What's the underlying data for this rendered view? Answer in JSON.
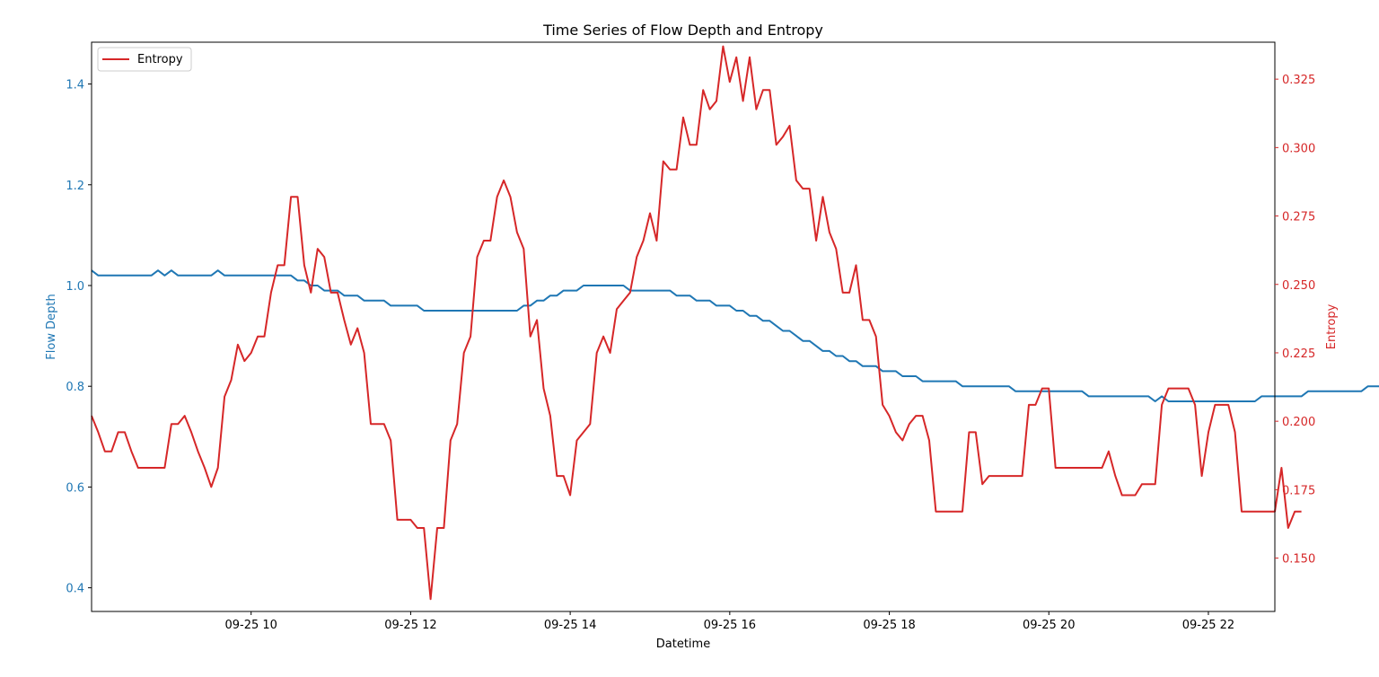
{
  "chart_data": {
    "type": "line",
    "title": "Time Series of Flow Depth and Entropy",
    "xlabel": "Datetime",
    "ylabel_left": "Flow Depth",
    "ylabel_right": "Entropy",
    "xlim": [
      "2025-09-25 08:00",
      "2025-09-25 22:50"
    ],
    "ylim_left": [
      0.353,
      1.483
    ],
    "ylim_right": [
      0.1305,
      0.3385
    ],
    "x_ticks": [
      {
        "t": "2025-09-25 10:00",
        "label": "09-25 10"
      },
      {
        "t": "2025-09-25 12:00",
        "label": "09-25 12"
      },
      {
        "t": "2025-09-25 14:00",
        "label": "09-25 14"
      },
      {
        "t": "2025-09-25 16:00",
        "label": "09-25 16"
      },
      {
        "t": "2025-09-25 18:00",
        "label": "09-25 18"
      },
      {
        "t": "2025-09-25 20:00",
        "label": "09-25 20"
      },
      {
        "t": "2025-09-25 22:00",
        "label": "09-25 22"
      }
    ],
    "y_ticks_left": [
      "0.4",
      "0.6",
      "0.8",
      "1.0",
      "1.2",
      "1.4"
    ],
    "y_ticks_right": [
      "0.150",
      "0.175",
      "0.200",
      "0.225",
      "0.250",
      "0.275",
      "0.300",
      "0.325"
    ],
    "legend": {
      "placement": "upper-left",
      "entries": [
        "Entropy"
      ]
    },
    "grid": false,
    "start_time": "2025-09-25 08:00",
    "step_minutes": 5,
    "series": [
      {
        "name": "",
        "axis": "left",
        "color": "#1f77b4",
        "values": [
          1.03,
          1.02,
          1.02,
          1.02,
          1.02,
          1.02,
          1.02,
          1.02,
          1.02,
          1.02,
          1.03,
          1.02,
          1.03,
          1.02,
          1.02,
          1.02,
          1.02,
          1.02,
          1.02,
          1.03,
          1.02,
          1.02,
          1.02,
          1.02,
          1.02,
          1.02,
          1.02,
          1.02,
          1.02,
          1.02,
          1.02,
          1.01,
          1.01,
          1.0,
          1.0,
          0.99,
          0.99,
          0.99,
          0.98,
          0.98,
          0.98,
          0.97,
          0.97,
          0.97,
          0.97,
          0.96,
          0.96,
          0.96,
          0.96,
          0.96,
          0.95,
          0.95,
          0.95,
          0.95,
          0.95,
          0.95,
          0.95,
          0.95,
          0.95,
          0.95,
          0.95,
          0.95,
          0.95,
          0.95,
          0.95,
          0.96,
          0.96,
          0.97,
          0.97,
          0.98,
          0.98,
          0.99,
          0.99,
          0.99,
          1.0,
          1.0,
          1.0,
          1.0,
          1.0,
          1.0,
          1.0,
          0.99,
          0.99,
          0.99,
          0.99,
          0.99,
          0.99,
          0.99,
          0.98,
          0.98,
          0.98,
          0.97,
          0.97,
          0.97,
          0.96,
          0.96,
          0.96,
          0.95,
          0.95,
          0.94,
          0.94,
          0.93,
          0.93,
          0.92,
          0.91,
          0.91,
          0.9,
          0.89,
          0.89,
          0.88,
          0.87,
          0.87,
          0.86,
          0.86,
          0.85,
          0.85,
          0.84,
          0.84,
          0.84,
          0.83,
          0.83,
          0.83,
          0.82,
          0.82,
          0.82,
          0.81,
          0.81,
          0.81,
          0.81,
          0.81,
          0.81,
          0.8,
          0.8,
          0.8,
          0.8,
          0.8,
          0.8,
          0.8,
          0.8,
          0.79,
          0.79,
          0.79,
          0.79,
          0.79,
          0.79,
          0.79,
          0.79,
          0.79,
          0.79,
          0.79,
          0.78,
          0.78,
          0.78,
          0.78,
          0.78,
          0.78,
          0.78,
          0.78,
          0.78,
          0.78,
          0.77,
          0.78,
          0.77,
          0.77,
          0.77,
          0.77,
          0.77,
          0.77,
          0.77,
          0.77,
          0.77,
          0.77,
          0.77,
          0.77,
          0.77,
          0.77,
          0.78,
          0.78,
          0.78,
          0.78,
          0.78,
          0.78,
          0.78,
          0.79,
          0.79,
          0.79,
          0.79,
          0.79,
          0.79,
          0.79,
          0.79,
          0.79,
          0.8,
          0.8,
          0.8,
          0.8,
          0.8,
          0.8,
          0.8,
          0.8,
          0.8,
          0.8,
          0.8
        ]
      },
      {
        "name": "Entropy",
        "axis": "right",
        "color": "#d62728",
        "values": [
          0.202,
          0.196,
          0.189,
          0.189,
          0.196,
          0.196,
          0.189,
          0.183,
          0.183,
          0.183,
          0.183,
          0.183,
          0.199,
          0.199,
          0.202,
          0.196,
          0.189,
          0.183,
          0.176,
          0.183,
          0.209,
          0.215,
          0.228,
          0.222,
          0.225,
          0.231,
          0.231,
          0.247,
          0.257,
          0.257,
          0.282,
          0.282,
          0.257,
          0.247,
          0.263,
          0.26,
          0.247,
          0.247,
          0.237,
          0.228,
          0.234,
          0.225,
          0.199,
          0.199,
          0.199,
          0.193,
          0.164,
          0.164,
          0.164,
          0.161,
          0.161,
          0.135,
          0.161,
          0.161,
          0.193,
          0.199,
          0.225,
          0.231,
          0.26,
          0.266,
          0.266,
          0.282,
          0.288,
          0.282,
          0.269,
          0.263,
          0.231,
          0.237,
          0.212,
          0.202,
          0.18,
          0.18,
          0.173,
          0.193,
          0.196,
          0.199,
          0.225,
          0.231,
          0.225,
          0.241,
          0.244,
          0.247,
          0.26,
          0.266,
          0.276,
          0.266,
          0.295,
          0.292,
          0.292,
          0.311,
          0.301,
          0.301,
          0.321,
          0.314,
          0.317,
          0.337,
          0.324,
          0.333,
          0.317,
          0.333,
          0.314,
          0.321,
          0.321,
          0.301,
          0.304,
          0.308,
          0.288,
          0.285,
          0.285,
          0.266,
          0.282,
          0.269,
          0.263,
          0.247,
          0.247,
          0.257,
          0.237,
          0.237,
          0.231,
          0.206,
          0.202,
          0.196,
          0.193,
          0.199,
          0.202,
          0.202,
          0.193,
          0.167,
          0.167,
          0.167,
          0.167,
          0.167,
          0.196,
          0.196,
          0.177,
          0.18,
          0.18,
          0.18,
          0.18,
          0.18,
          0.18,
          0.206,
          0.206,
          0.212,
          0.212,
          0.183,
          0.183,
          0.183,
          0.183,
          0.183,
          0.183,
          0.183,
          0.183,
          0.189,
          0.18,
          0.173,
          0.173,
          0.173,
          0.177,
          0.177,
          0.177,
          0.206,
          0.212,
          0.212,
          0.212,
          0.212,
          0.206,
          0.18,
          0.196,
          0.206,
          0.206,
          0.206,
          0.196,
          0.167,
          0.167,
          0.167,
          0.167,
          0.167,
          0.167,
          0.183,
          0.161,
          0.167,
          0.167
        ]
      }
    ]
  }
}
